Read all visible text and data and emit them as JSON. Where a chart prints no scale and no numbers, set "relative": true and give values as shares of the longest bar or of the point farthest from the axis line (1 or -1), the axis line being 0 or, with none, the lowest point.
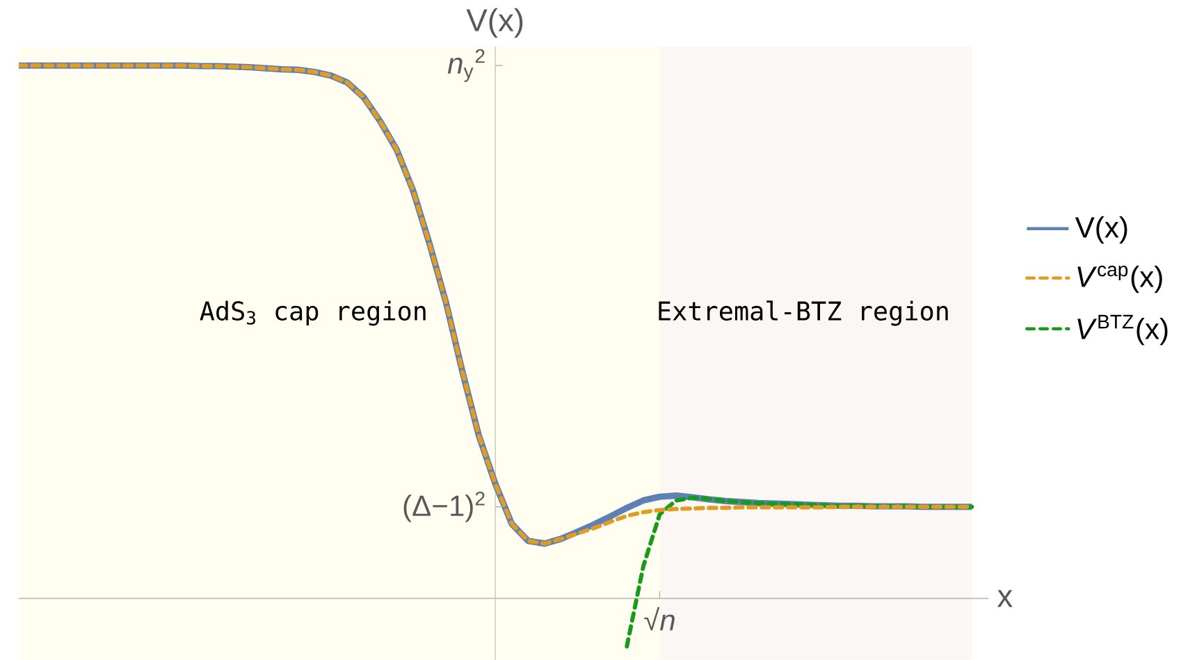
{
  "chart_data": {
    "type": "line",
    "xlabel": "x",
    "ylabel": "V(x)",
    "relative": true,
    "categories": [
      null,
      null,
      null,
      null,
      null,
      null,
      null,
      null,
      null,
      null,
      null,
      null,
      null,
      null,
      null,
      null,
      null,
      null,
      null,
      null,
      null,
      null,
      null,
      null,
      null,
      null,
      null,
      null,
      null,
      null,
      null,
      null,
      null,
      null,
      null,
      null,
      null,
      null,
      null,
      null,
      null,
      null,
      null,
      null,
      null,
      null,
      null,
      null,
      null,
      null,
      null,
      null,
      null,
      null,
      null,
      null,
      null,
      null,
      null
    ],
    "annotations": [
      "(Δ−1)$^{2}$",
      "*n*$_{y}$$^{2}$",
      "√*n*",
      "AdS$_{3}$ cap region",
      "Extremal-BTZ region"
    ],
    "legend": "right",
    "marker": "none",
    "series": [
      {
        "name": "V(x)",
        "color": "#5e81b5",
        "line_style": "solid",
        "values": [
          1.0,
          1.0,
          1.0,
          1.0,
          1.0,
          1.0,
          1.0,
          1.0,
          1.0,
          1.0,
          1.0,
          0.999,
          0.999,
          0.998,
          0.997,
          0.995,
          0.993,
          0.992,
          0.988,
          0.981,
          0.968,
          0.94,
          0.895,
          0.842,
          0.765,
          0.665,
          0.555,
          0.425,
          0.305,
          0.215,
          0.14,
          0.108,
          0.103,
          0.112,
          0.125,
          0.139,
          0.154,
          0.17,
          0.184,
          0.191,
          0.193,
          0.19,
          0.186,
          0.183,
          0.181,
          0.179,
          0.178,
          0.177,
          0.176,
          0.175,
          0.174,
          0.174,
          0.173,
          0.173,
          0.173,
          0.172,
          0.172,
          0.172,
          0.172
        ]
      },
      {
        "name": "*V*$^{cap}$(x)",
        "color": "#e19c24",
        "line_style": "dashed",
        "values": [
          1.0,
          1.0,
          1.0,
          1.0,
          1.0,
          1.0,
          1.0,
          1.0,
          1.0,
          1.0,
          1.0,
          0.999,
          0.999,
          0.998,
          0.997,
          0.995,
          0.993,
          0.992,
          0.988,
          0.981,
          0.968,
          0.94,
          0.895,
          0.842,
          0.765,
          0.665,
          0.555,
          0.425,
          0.305,
          0.215,
          0.14,
          0.108,
          0.103,
          0.112,
          0.122,
          0.132,
          0.144,
          0.155,
          0.162,
          0.166,
          0.168,
          0.169,
          0.17,
          0.17,
          0.171,
          0.171,
          0.171,
          0.171,
          0.171,
          0.171,
          0.172,
          0.172,
          0.172,
          0.172,
          0.172,
          0.172,
          0.172,
          0.172,
          0.172
        ]
      },
      {
        "name": "*V*$^{BTZ}$(x)",
        "color": "#1a9a1a",
        "line_style": "dashed",
        "values": [
          null,
          null,
          null,
          null,
          null,
          null,
          null,
          null,
          null,
          null,
          null,
          null,
          null,
          null,
          null,
          null,
          null,
          null,
          null,
          null,
          null,
          null,
          null,
          null,
          null,
          null,
          null,
          null,
          null,
          null,
          null,
          null,
          null,
          null,
          null,
          null,
          null,
          -0.09,
          0.06,
          0.158,
          0.184,
          0.189,
          0.187,
          0.183,
          0.181,
          0.179,
          0.178,
          0.177,
          0.176,
          0.175,
          0.174,
          0.174,
          0.173,
          0.173,
          0.173,
          0.172,
          0.172,
          0.172,
          0.172
        ]
      }
    ]
  }
}
